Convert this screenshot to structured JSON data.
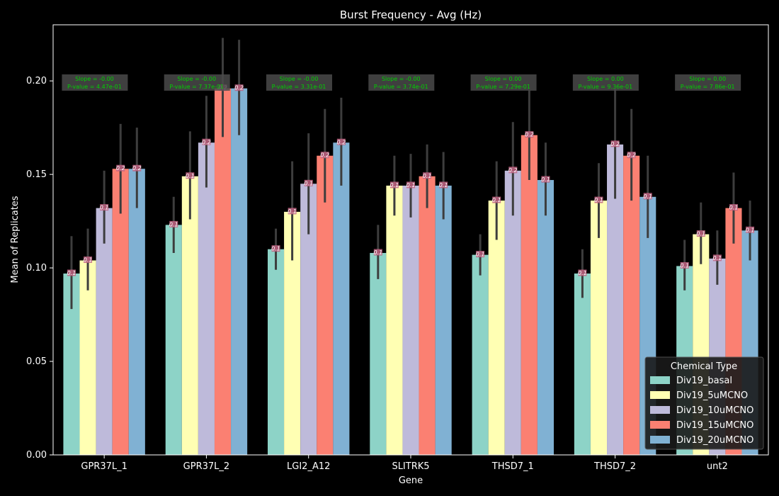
{
  "chart_data": {
    "type": "bar",
    "title": "Burst Frequency - Avg (Hz)",
    "xlabel": "Gene",
    "ylabel": "Mean of Replicates",
    "ylim": [
      0,
      0.23
    ],
    "yticks": [
      "0.00",
      "0.05",
      "0.10",
      "0.15",
      "0.20"
    ],
    "grid": false,
    "legend_placement": "lower-right",
    "legend_title": "Chemical Type",
    "categories": [
      "GPR37L_1",
      "GPR37L_2",
      "LGI2_A12",
      "SLITRK5",
      "THSD7_1",
      "THSD7_2",
      "unt2"
    ],
    "series": [
      {
        "name": "Div19_basal",
        "color": "#8dd3c7",
        "values": [
          0.097,
          0.123,
          0.11,
          0.108,
          0.107,
          0.097,
          0.101
        ],
        "ci_low": [
          0.078,
          0.108,
          0.099,
          0.094,
          0.096,
          0.084,
          0.088
        ],
        "ci_high": [
          0.117,
          0.138,
          0.121,
          0.123,
          0.118,
          0.11,
          0.115
        ],
        "labels": [
          "0.1",
          "0.1",
          "0.1",
          "0.1",
          "0.1",
          "0.1",
          "0.1"
        ]
      },
      {
        "name": "Div19_5uMCNO",
        "color": "#ffffb3",
        "values": [
          0.104,
          0.149,
          0.13,
          0.144,
          0.136,
          0.136,
          0.118
        ],
        "ci_low": [
          0.088,
          0.126,
          0.104,
          0.128,
          0.115,
          0.116,
          0.102
        ],
        "ci_high": [
          0.121,
          0.173,
          0.157,
          0.16,
          0.157,
          0.156,
          0.135
        ],
        "labels": [
          "0.1",
          "0.1",
          "0.1",
          "0.1",
          "0.1",
          "0.1",
          "0.1"
        ]
      },
      {
        "name": "Div19_10uMCNO",
        "color": "#bebada",
        "values": [
          0.132,
          0.167,
          0.145,
          0.144,
          0.152,
          0.166,
          0.105
        ],
        "ci_low": [
          0.113,
          0.143,
          0.118,
          0.127,
          0.128,
          0.137,
          0.091
        ],
        "ci_high": [
          0.152,
          0.192,
          0.172,
          0.161,
          0.178,
          0.196,
          0.12
        ],
        "labels": [
          "0.1",
          "0.2",
          "0.1",
          "0.1",
          "0.2",
          "0.2",
          "0.1"
        ]
      },
      {
        "name": "Div19_15uMCNO",
        "color": "#fb8072",
        "values": [
          0.153,
          0.196,
          0.16,
          0.149,
          0.171,
          0.16,
          0.132
        ],
        "ci_low": [
          0.129,
          0.17,
          0.135,
          0.132,
          0.147,
          0.136,
          0.113
        ],
        "ci_high": [
          0.177,
          0.223,
          0.185,
          0.166,
          0.195,
          0.185,
          0.151
        ],
        "labels": [
          "0.2",
          "0.2",
          "0.2",
          "0.1",
          "0.2",
          "0.2",
          "0.1"
        ]
      },
      {
        "name": "Div19_20uMCNO",
        "color": "#80b1d3",
        "values": [
          0.153,
          0.196,
          0.167,
          0.144,
          0.147,
          0.138,
          0.12
        ],
        "ci_low": [
          0.132,
          0.171,
          0.144,
          0.126,
          0.128,
          0.116,
          0.104
        ],
        "ci_high": [
          0.175,
          0.222,
          0.191,
          0.162,
          0.167,
          0.16,
          0.136
        ],
        "labels": [
          "0.2",
          "0.2",
          "0.2",
          "0.1",
          "0.1",
          "0.1",
          "0.1"
        ]
      }
    ],
    "annotations": [
      {
        "slope": "Slope = -0.00",
        "pvalue": "P-value = 4.47e-01"
      },
      {
        "slope": "Slope = -0.00",
        "pvalue": "P-value = 7.37e-01"
      },
      {
        "slope": "Slope = -0.00",
        "pvalue": "P-value = 3.31e-01"
      },
      {
        "slope": "Slope = -0.00",
        "pvalue": "P-value = 3.74e-01"
      },
      {
        "slope": "Slope = 0.00",
        "pvalue": "P-value = 7.29e-01"
      },
      {
        "slope": "Slope = 0.00",
        "pvalue": "P-value = 9.36e-01"
      },
      {
        "slope": "Slope = 0.00",
        "pvalue": "P-value = 7.86e-01"
      }
    ]
  }
}
